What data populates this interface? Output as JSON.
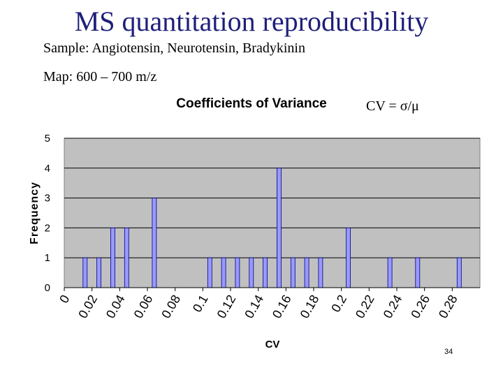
{
  "slide": {
    "title": "MS quantitation reproducibility",
    "sample_line": "Sample: Angiotensin, Neurotensin, Bradykinin",
    "map_line": "Map: 600 – 700 m/z",
    "formula": "CV = σ/μ",
    "page_number": "34"
  },
  "colors": {
    "title": "#1f1f7a",
    "plot_background": "#c0c0c0",
    "bar_fill": "#9999ff",
    "bar_stroke": "#000080",
    "gridline": "#000000"
  },
  "chart_data": {
    "type": "bar",
    "title": "Coefficients of Variance",
    "xlabel": "CV",
    "ylabel": "Frequency",
    "ylim": [
      0,
      5
    ],
    "y_ticks": [
      "0",
      "1",
      "2",
      "3",
      "4",
      "5"
    ],
    "y_tick_values": [
      0,
      1,
      2,
      3,
      4,
      5
    ],
    "xlim": [
      0,
      0.3
    ],
    "x_ticks": [
      "0",
      "0.02",
      "0.04",
      "0.06",
      "0.08",
      "0.1",
      "0.12",
      "0.14",
      "0.16",
      "0.18",
      "0.2",
      "0.22",
      "0.24",
      "0.26",
      "0.28"
    ],
    "x_tick_values": [
      0,
      0.02,
      0.04,
      0.06,
      0.08,
      0.1,
      0.12,
      0.14,
      0.16,
      0.18,
      0.2,
      0.22,
      0.24,
      0.26,
      0.28
    ],
    "grid": "horizontal",
    "legend": "none",
    "bars": [
      {
        "x": 0.015,
        "value": 1
      },
      {
        "x": 0.025,
        "value": 1
      },
      {
        "x": 0.035,
        "value": 2
      },
      {
        "x": 0.045,
        "value": 2
      },
      {
        "x": 0.065,
        "value": 3
      },
      {
        "x": 0.105,
        "value": 1
      },
      {
        "x": 0.115,
        "value": 1
      },
      {
        "x": 0.125,
        "value": 1
      },
      {
        "x": 0.135,
        "value": 1
      },
      {
        "x": 0.145,
        "value": 1
      },
      {
        "x": 0.155,
        "value": 4
      },
      {
        "x": 0.165,
        "value": 1
      },
      {
        "x": 0.175,
        "value": 1
      },
      {
        "x": 0.185,
        "value": 1
      },
      {
        "x": 0.205,
        "value": 2
      },
      {
        "x": 0.235,
        "value": 1
      },
      {
        "x": 0.255,
        "value": 1
      },
      {
        "x": 0.285,
        "value": 1
      }
    ]
  }
}
